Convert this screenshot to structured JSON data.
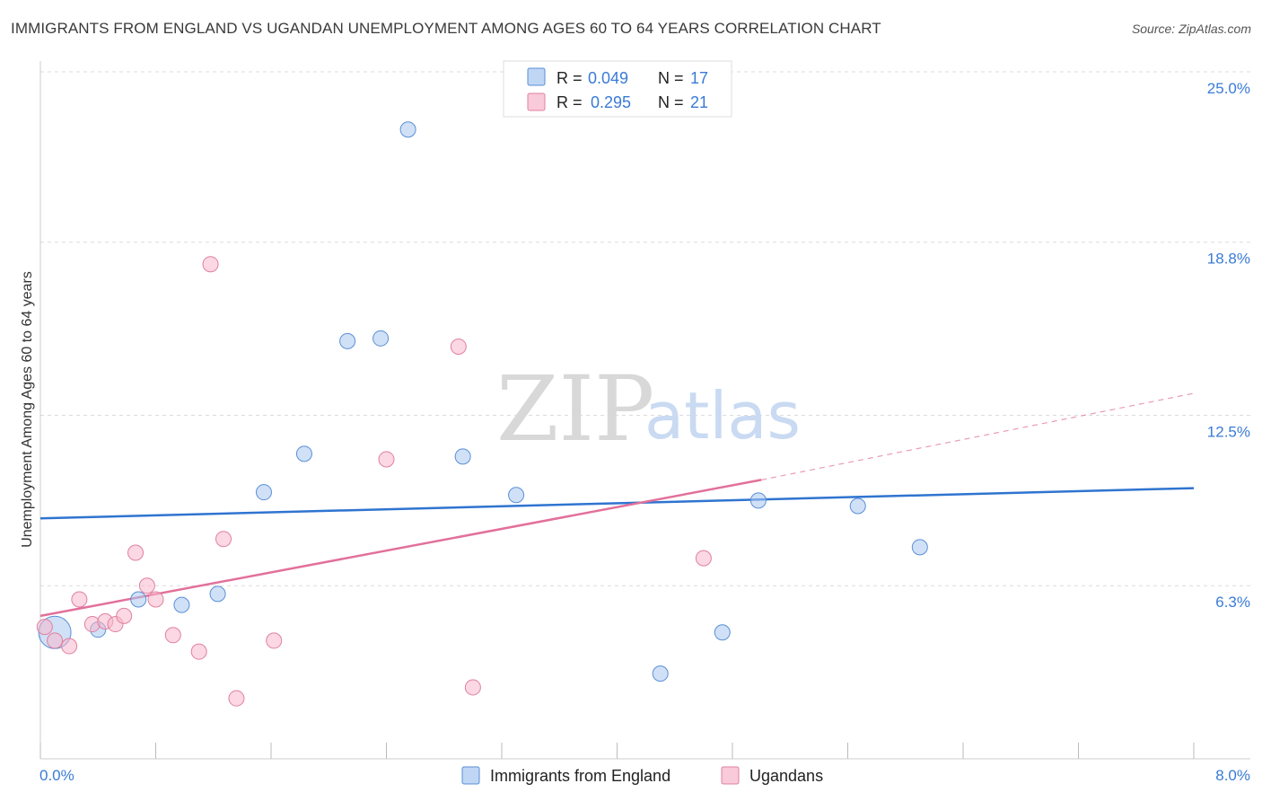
{
  "title": "IMMIGRANTS FROM ENGLAND VS UGANDAN UNEMPLOYMENT AMONG AGES 60 TO 64 YEARS CORRELATION CHART",
  "source": "Source: ZipAtlas.com",
  "watermark": {
    "zip": "ZIP",
    "atlas": "atlas"
  },
  "legend": {
    "rows": [
      {
        "r_label": "R =",
        "r_value": "0.049",
        "n_label": "N =",
        "n_value": "17",
        "color": "#a9c8f0",
        "edge": "#5a8fd6"
      },
      {
        "r_label": "R =",
        "r_value": "0.295",
        "n_label": "N =",
        "n_value": "21",
        "color": "#f7b8cc",
        "edge": "#e0809f"
      }
    ]
  },
  "chart_data": {
    "type": "scatter",
    "title": "IMMIGRANTS FROM ENGLAND VS UGANDAN UNEMPLOYMENT AMONG AGES 60 TO 64 YEARS CORRELATION CHART",
    "xlabel": "",
    "ylabel": "Unemployment Among Ages 60 to 64 years",
    "xlim": [
      0.0,
      8.0
    ],
    "ylim": [
      0.0,
      25.0
    ],
    "x_tick_labels": [
      "0.0%",
      "8.0%"
    ],
    "y_tick_labels": [
      "6.3%",
      "12.5%",
      "18.8%",
      "25.0%"
    ],
    "y_ticks": [
      6.3,
      12.5,
      18.8,
      25.0
    ],
    "series": [
      {
        "name": "Immigrants from England",
        "color": "#a9c8f0",
        "edge": "#5a8fd6",
        "line_color": "#2f74d0",
        "points": [
          {
            "x": 0.1,
            "y": 4.6,
            "big": true
          },
          {
            "x": 0.4,
            "y": 4.7
          },
          {
            "x": 0.68,
            "y": 5.8
          },
          {
            "x": 0.98,
            "y": 5.6
          },
          {
            "x": 1.23,
            "y": 6.0
          },
          {
            "x": 1.55,
            "y": 9.7
          },
          {
            "x": 1.83,
            "y": 11.1
          },
          {
            "x": 2.13,
            "y": 15.2
          },
          {
            "x": 2.36,
            "y": 15.3
          },
          {
            "x": 2.55,
            "y": 22.9
          },
          {
            "x": 2.93,
            "y": 11.0
          },
          {
            "x": 3.3,
            "y": 9.6
          },
          {
            "x": 4.3,
            "y": 3.1
          },
          {
            "x": 4.73,
            "y": 4.6
          },
          {
            "x": 4.98,
            "y": 9.4
          },
          {
            "x": 5.67,
            "y": 9.2
          },
          {
            "x": 6.1,
            "y": 7.7
          }
        ],
        "trend": {
          "x": [
            0.0,
            8.0
          ],
          "y": [
            8.75,
            9.85
          ]
        }
      },
      {
        "name": "Ugandans",
        "color": "#f7b8cc",
        "edge": "#e0809f",
        "line_color": "#e2709a",
        "points": [
          {
            "x": 0.03,
            "y": 4.8
          },
          {
            "x": 0.1,
            "y": 4.3
          },
          {
            "x": 0.2,
            "y": 4.1
          },
          {
            "x": 0.27,
            "y": 5.8
          },
          {
            "x": 0.36,
            "y": 4.9
          },
          {
            "x": 0.45,
            "y": 5.0
          },
          {
            "x": 0.52,
            "y": 4.9
          },
          {
            "x": 0.58,
            "y": 5.2
          },
          {
            "x": 0.66,
            "y": 7.5
          },
          {
            "x": 0.74,
            "y": 6.3
          },
          {
            "x": 0.8,
            "y": 5.8
          },
          {
            "x": 0.92,
            "y": 4.5
          },
          {
            "x": 1.1,
            "y": 3.9
          },
          {
            "x": 1.18,
            "y": 18.0
          },
          {
            "x": 1.27,
            "y": 8.0
          },
          {
            "x": 1.36,
            "y": 2.2
          },
          {
            "x": 1.62,
            "y": 4.3
          },
          {
            "x": 2.4,
            "y": 10.9
          },
          {
            "x": 2.9,
            "y": 15.0
          },
          {
            "x": 3.0,
            "y": 2.6
          },
          {
            "x": 4.6,
            "y": 7.3
          }
        ],
        "trend": {
          "x": [
            0.0,
            5.0
          ],
          "y": [
            5.2,
            10.15
          ]
        },
        "trend_extension": {
          "x": [
            5.0,
            8.0
          ],
          "y": [
            10.15,
            13.3
          ]
        }
      }
    ],
    "legend_position": "bottom-center"
  }
}
